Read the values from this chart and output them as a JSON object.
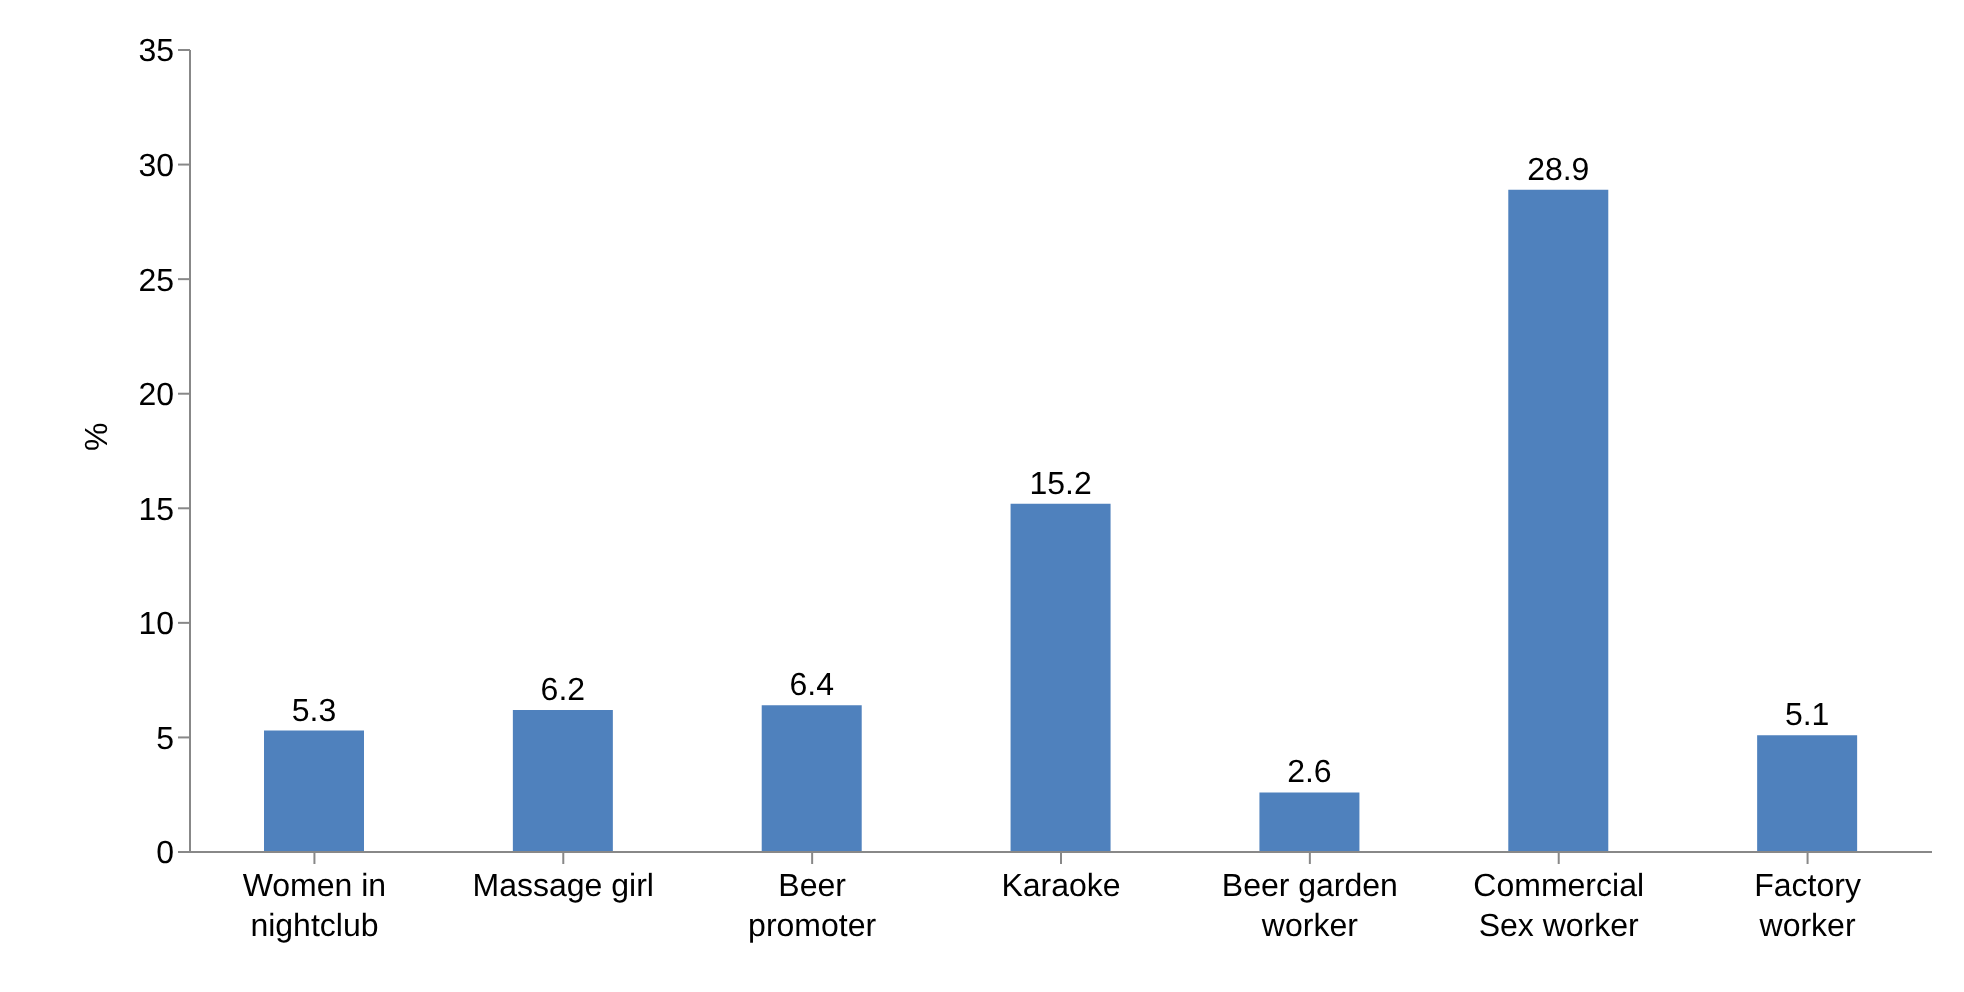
{
  "chart_data": {
    "type": "bar",
    "categories": [
      "Women in nightclub",
      "Massage girl",
      "Beer promoter",
      "Karaoke",
      "Beer garden worker",
      "Commercial Sex worker",
      "Factory worker"
    ],
    "values": [
      5.3,
      6.2,
      6.4,
      15.2,
      2.6,
      28.9,
      5.1
    ],
    "color": "#4f81bd",
    "ylabel": "%",
    "ylim": [
      0,
      35
    ],
    "yticks": [
      0,
      5,
      10,
      15,
      20,
      25,
      30,
      35
    ],
    "grid": false,
    "legend": false,
    "data_labels": true
  }
}
